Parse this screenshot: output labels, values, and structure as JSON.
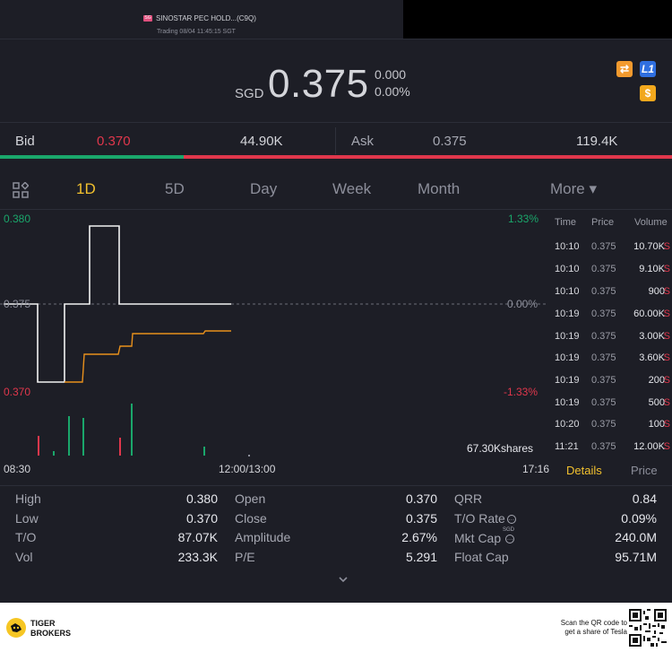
{
  "header": {
    "badge": "SG",
    "title": "SINOSTAR PEC HOLD...(C9Q)",
    "status": "Trading 08/04 11:45:15 SGT"
  },
  "quote": {
    "currency": "SGD",
    "price": "0.375",
    "change": "0.000",
    "change_pct": "0.00%",
    "icons": [
      "swap-icon",
      "level1-icon",
      "dollar-icon"
    ]
  },
  "bidask": {
    "bid_label": "Bid",
    "bid_price": "0.370",
    "bid_size": "44.90K",
    "ask_label": "Ask",
    "ask_price": "0.375",
    "ask_size": "119.4K",
    "bid_fraction": 0.273
  },
  "tabs": [
    "1D",
    "5D",
    "Day",
    "Week",
    "Month",
    "More ▾"
  ],
  "active_tab": "1D",
  "chart": {
    "y_high": "0.380",
    "y_mid": "0.375",
    "y_low": "0.370",
    "pct_high": "1.33%",
    "pct_mid": "0.00%",
    "pct_low": "-1.33%",
    "volume_label": "67.30Kshares",
    "t_start": "08:30",
    "t_mid": "12:00/13:00",
    "t_end": "17:16",
    "colors": {
      "up": "#1aa76b",
      "down": "#e0374c",
      "price_line": "#f2f2f2",
      "avg_line": "#e8901c"
    }
  },
  "chart_data": {
    "type": "line",
    "ylim": [
      0.37,
      0.38
    ],
    "series": [
      {
        "values": [
          0.375,
          0.375,
          0.37,
          0.37,
          0.375,
          0.375,
          0.38,
          0.38,
          0.375,
          0.375
        ]
      },
      {
        "values": [
          0.37,
          0.3725,
          0.3726,
          0.373,
          0.3732,
          0.3732,
          0.3738,
          0.3738,
          0.3738,
          0.374,
          0.374
        ]
      }
    ],
    "volume": {
      "up": [
        18,
        21,
        0,
        26
      ],
      "down": [
        8,
        8,
        0
      ]
    }
  },
  "trades": {
    "headers": [
      "Time",
      "Price",
      "Volume"
    ],
    "rows": [
      {
        "time": "10:10",
        "price": "0.375",
        "volume": "10.70K",
        "flag": "S"
      },
      {
        "time": "10:10",
        "price": "0.375",
        "volume": "9.10K",
        "flag": "S"
      },
      {
        "time": "10:10",
        "price": "0.375",
        "volume": "900",
        "flag": "S"
      },
      {
        "time": "10:19",
        "price": "0.375",
        "volume": "60.00K",
        "flag": "S"
      },
      {
        "time": "10:19",
        "price": "0.375",
        "volume": "3.00K",
        "flag": "S"
      },
      {
        "time": "10:19",
        "price": "0.375",
        "volume": "3.60K",
        "flag": "S"
      },
      {
        "time": "10:19",
        "price": "0.375",
        "volume": "200",
        "flag": "S"
      },
      {
        "time": "10:19",
        "price": "0.375",
        "volume": "500",
        "flag": "S"
      },
      {
        "time": "10:20",
        "price": "0.375",
        "volume": "100",
        "flag": "S"
      },
      {
        "time": "11:21",
        "price": "0.375",
        "volume": "12.00K",
        "flag": "S"
      }
    ],
    "tab_details": "Details",
    "tab_price": "Price"
  },
  "stats": {
    "high_l": "High",
    "high_v": "0.380",
    "low_l": "Low",
    "low_v": "0.370",
    "to_l": "T/O",
    "to_v": "87.07K",
    "vol_l": "Vol",
    "vol_v": "233.3K",
    "open_l": "Open",
    "open_v": "0.370",
    "close_l": "Close",
    "close_v": "0.375",
    "amp_l": "Amplitude",
    "amp_v": "2.67%",
    "pe_l": "P/E",
    "pe_v": "5.291",
    "qrr_l": "QRR",
    "qrr_v": "0.84",
    "torate_l": "T/O Rate",
    "torate_v": "0.09%",
    "mktcap_l": "Mkt Cap",
    "mktcap_sup": "SGD",
    "mktcap_v": "240.0M",
    "float_l": "Float Cap",
    "float_v": "95.71M"
  },
  "footer": {
    "brand_line1": "TIGER",
    "brand_line2": "BROKERS",
    "scan_line1": "Scan the QR code to",
    "scan_line2": "get a share of Tesla"
  }
}
